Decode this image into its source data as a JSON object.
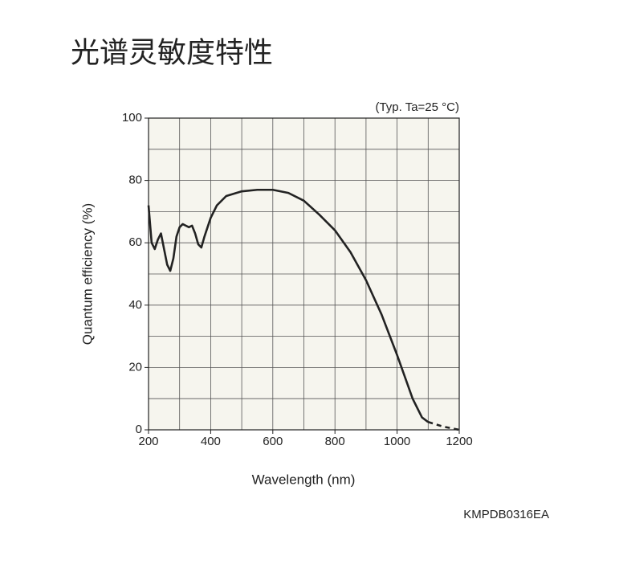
{
  "chart_data": {
    "type": "line",
    "title": "光谱灵敏度特性",
    "note": "(Typ. Ta=25 °C)",
    "xlabel": "Wavelength (nm)",
    "ylabel": "Quantum efficiency (%)",
    "code": "KMPDB0316EA",
    "xlim": [
      200,
      1200
    ],
    "ylim": [
      0,
      100
    ],
    "xticks": [
      200,
      400,
      600,
      800,
      1000,
      1200
    ],
    "yticks": [
      0,
      20,
      40,
      60,
      80,
      100
    ],
    "xgrid": [
      300,
      400,
      500,
      600,
      700,
      800,
      900,
      1000,
      1100
    ],
    "ygrid": [
      10,
      20,
      30,
      40,
      50,
      60,
      70,
      80,
      90
    ],
    "grid": true,
    "background": "#f6f5ee",
    "series": [
      {
        "color": "#222222",
        "style": "solid",
        "x": [
          200,
          210,
          220,
          230,
          240,
          250,
          260,
          270,
          280,
          290,
          300,
          310,
          320,
          330,
          340,
          350,
          360,
          370,
          380,
          400,
          420,
          450,
          500,
          550,
          600,
          650,
          700,
          750,
          800,
          850,
          900,
          950,
          1000,
          1050,
          1080,
          1100
        ],
        "values": [
          72,
          60,
          58,
          61,
          63,
          58,
          53,
          51,
          55,
          62,
          65,
          66,
          65.5,
          65,
          65.5,
          63,
          59.5,
          58.5,
          62,
          68,
          72,
          75,
          76.5,
          77,
          77,
          76,
          73.5,
          69,
          64,
          57,
          48,
          37,
          24,
          10,
          4,
          2.5
        ]
      },
      {
        "color": "#222222",
        "style": "dashed",
        "x": [
          1100,
          1150,
          1200
        ],
        "values": [
          2.5,
          1,
          0
        ]
      }
    ]
  }
}
